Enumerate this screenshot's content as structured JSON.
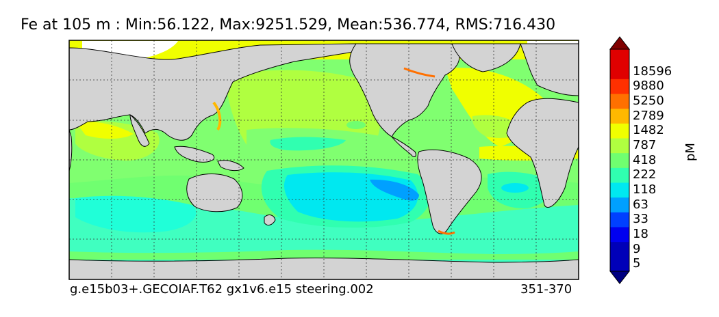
{
  "title": "Fe at 105 m : Min:56.122, Max:9251.529, Mean:536.774, RMS:716.430",
  "footer": {
    "case": "g.e15b03+.GECOIAF.T62 gx1v6.e15 steering.002",
    "years": "351-370"
  },
  "colorbar": {
    "unit": "pM",
    "levels": [
      "5",
      "9",
      "18",
      "33",
      "63",
      "118",
      "222",
      "418",
      "787",
      "1482",
      "2789",
      "5250",
      "9880",
      "18596"
    ],
    "colors": [
      "#000080",
      "#0000b8",
      "#0000f0",
      "#0040ff",
      "#00a0ff",
      "#00e8f0",
      "#30ffb0",
      "#70ff70",
      "#b0ff40",
      "#f0ff00",
      "#ffb800",
      "#ff7000",
      "#ff3000",
      "#e00000",
      "#800000"
    ],
    "extend": "both"
  },
  "map": {
    "land_color": "#d3d3d3",
    "no_data_color": "#ffffff",
    "grid": true,
    "grid_style": "dotted"
  }
}
